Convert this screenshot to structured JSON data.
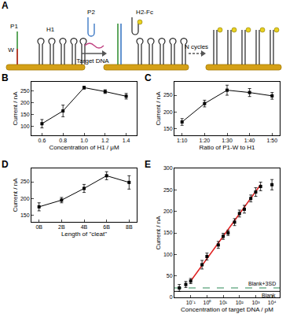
{
  "diagram": {
    "panel": "A",
    "labels": [
      "P1",
      "W",
      "H1",
      "P2",
      "Target DNA",
      "H2-Fc",
      "N cycles"
    ]
  },
  "chart_data": [
    {
      "panel": "B",
      "type": "line",
      "x": [
        0.6,
        0.8,
        1.0,
        1.2,
        1.4
      ],
      "values": [
        110,
        165,
        265,
        248,
        228
      ],
      "errors": [
        18,
        25,
        6,
        8,
        12
      ],
      "x_label": "Concentration of H1 / μM",
      "y_label": "Current / nA",
      "xlim": [
        0.5,
        1.5
      ],
      "xticks": [
        0.6,
        0.8,
        {
          "value": 1.0,
          "label": "1.0"
        },
        1.2,
        1.4
      ],
      "ylim": [
        60,
        290
      ],
      "yticks": [
        100,
        150,
        200,
        250
      ],
      "color": "#000000",
      "marker": "square",
      "grid": false
    },
    {
      "panel": "C",
      "type": "line",
      "categories": [
        "1:10",
        "1:20",
        "1:30",
        "1:40",
        "1:50"
      ],
      "values": [
        170,
        225,
        265,
        258,
        248
      ],
      "errors": [
        10,
        10,
        15,
        12,
        10
      ],
      "x_label": "Ratio of P1-W to H1",
      "y_label": "Current / nA",
      "ylim": [
        130,
        290
      ],
      "yticks": [
        150,
        200,
        250
      ],
      "color": "#000000",
      "marker": "square",
      "grid": false
    },
    {
      "panel": "D",
      "type": "line",
      "categories": [
        "0B",
        "2B",
        "4B",
        "6B",
        "8B"
      ],
      "values": [
        175,
        195,
        230,
        268,
        248
      ],
      "errors": [
        12,
        8,
        12,
        12,
        20
      ],
      "x_label": "Length of \"cleat\"",
      "y_label": "Current / nA",
      "ylim": [
        130,
        290
      ],
      "yticks": [
        150,
        200,
        250
      ],
      "color": "#000000",
      "marker": "square",
      "grid": false
    },
    {
      "panel": "E",
      "type": "scatter",
      "log": "x",
      "x": [
        0.02,
        0.05,
        0.1,
        0.5,
        1,
        5,
        10,
        20,
        50,
        100,
        200,
        500,
        1000,
        2000,
        10000
      ],
      "values": [
        22,
        30,
        38,
        76,
        95,
        122,
        142,
        150,
        175,
        195,
        205,
        230,
        245,
        258,
        262
      ],
      "errors": [
        8,
        7,
        6,
        10,
        8,
        8,
        7,
        6,
        8,
        8,
        9,
        8,
        10,
        10,
        12
      ],
      "x_label": "Concentration of target DNA / pM",
      "y_label": "Current / nA",
      "xlim": [
        0.01,
        30000
      ],
      "xticks": [
        {
          "value": 0.1,
          "label": "10⁻¹"
        },
        {
          "value": 1,
          "label": "10⁰"
        },
        {
          "value": 10,
          "label": "10¹"
        },
        {
          "value": 100,
          "label": "10²"
        },
        {
          "value": 1000,
          "label": "10³"
        },
        {
          "value": 10000,
          "label": "10⁴"
        }
      ],
      "ylim": [
        0,
        300
      ],
      "yticks": [
        0,
        50,
        100,
        150,
        200,
        250,
        300
      ],
      "color": "#000000",
      "marker": "square",
      "grid": false,
      "fit": {
        "x": [
          0.1,
          2000
        ],
        "values": [
          38,
          262
        ],
        "color": "#e02020"
      },
      "hlines": [
        {
          "label": "Blank+3SD",
          "value": 22,
          "color": "#2e8b57",
          "line_style": "dashed"
        },
        {
          "label": "Blank",
          "value": 14,
          "color": "#000000",
          "line_style": "solid"
        }
      ]
    }
  ]
}
